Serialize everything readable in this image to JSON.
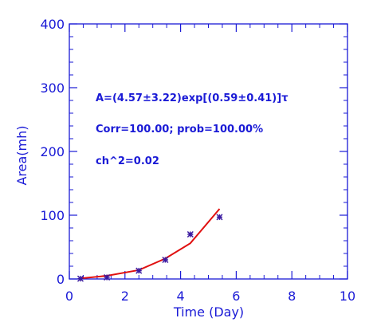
{
  "colors": {
    "axis": "#1a1ad6",
    "fit_line": "#e01010",
    "points": "#3a1aa0"
  },
  "chart_data": {
    "type": "scatter",
    "title": "",
    "xlabel": "Time (Day)",
    "ylabel": "Area(mh)",
    "xlim": [
      0,
      10
    ],
    "ylim": [
      0,
      400
    ],
    "x_ticks": [
      0,
      2,
      4,
      6,
      8,
      10
    ],
    "y_ticks": [
      0,
      100,
      200,
      300,
      400
    ],
    "grid": false,
    "series": [
      {
        "type": "scatter",
        "marker": "star",
        "x": [
          0.4,
          1.35,
          2.5,
          3.45,
          4.35,
          5.4
        ],
        "y": [
          0.5,
          2.5,
          13,
          30,
          70,
          97
        ]
      },
      {
        "type": "line",
        "x": [
          0.4,
          1.35,
          2.5,
          3.45,
          4.35,
          5.4
        ],
        "y": [
          1,
          5,
          14,
          32,
          56,
          110
        ]
      }
    ],
    "annotations": [
      "A=(4.57±3.22)exp[(0.59±0.41)]τ",
      "Corr=100.00;   prob=100.00%",
      "ch^2=0.02"
    ]
  }
}
